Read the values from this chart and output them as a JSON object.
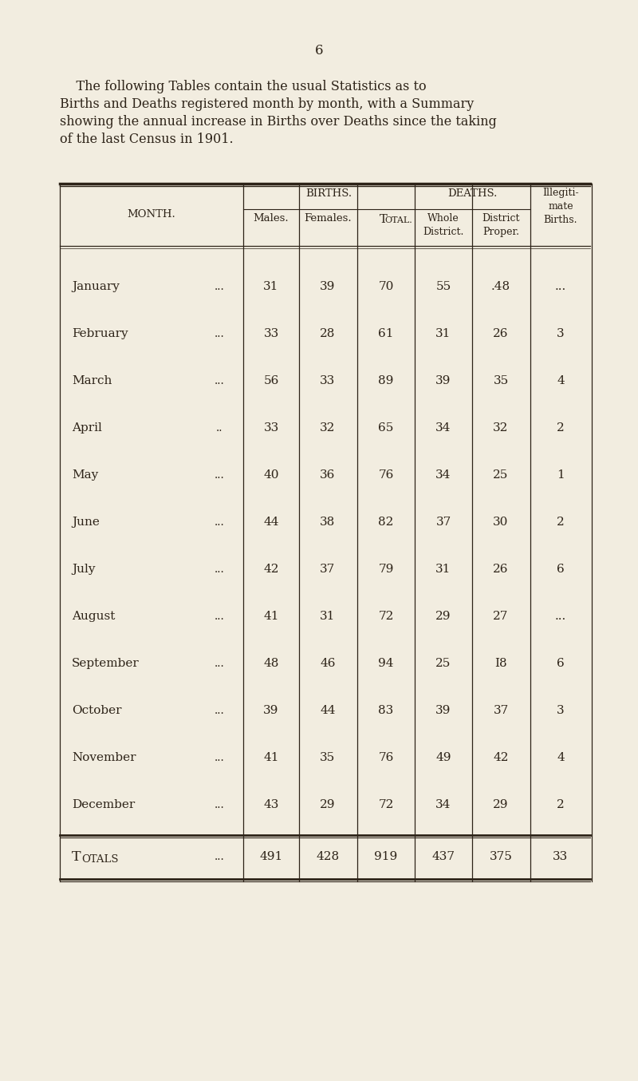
{
  "page_number": "6",
  "bg_color": "#F2EDE0",
  "text_color": "#2d2318",
  "intro_line1": "    The following Tables contain the usual Statistics as to",
  "intro_line2": "Births and Deaths registered month by month, with a Summary",
  "intro_line3": "showing the annual increase in Births over Deaths since the taking",
  "intro_line4": "of the last Census in 1901.",
  "months": [
    "January",
    "February",
    "March",
    "April",
    "May",
    "June",
    "July",
    "August",
    "September",
    "October",
    "November",
    "December"
  ],
  "month_dots": [
    "...",
    "...",
    "...",
    "..",
    "...",
    "...",
    "...",
    "...",
    "...",
    "...",
    "...",
    "..."
  ],
  "males": [
    31,
    33,
    56,
    33,
    40,
    44,
    42,
    41,
    48,
    39,
    41,
    43
  ],
  "females": [
    39,
    28,
    33,
    32,
    36,
    38,
    37,
    31,
    46,
    44,
    35,
    29
  ],
  "total_births": [
    70,
    61,
    89,
    65,
    76,
    82,
    79,
    72,
    94,
    83,
    76,
    72
  ],
  "whole_district": [
    "55",
    "31",
    "39",
    "34",
    "34",
    "37",
    "31",
    "29",
    "25",
    "39",
    "49",
    "34"
  ],
  "district_proper": [
    ".48",
    "26",
    "35",
    "32",
    "25",
    "30",
    "26",
    "27",
    "I8",
    "37",
    "42",
    "29"
  ],
  "illegitimate": [
    "...",
    "3",
    "4",
    "2",
    "1",
    "2",
    "6",
    "...",
    "6",
    "3",
    "4",
    "2"
  ],
  "totals_males": "491",
  "totals_females": "428",
  "totals_total": "919",
  "totals_whole": "437",
  "totals_district": "375",
  "totals_illegitimate": "33"
}
